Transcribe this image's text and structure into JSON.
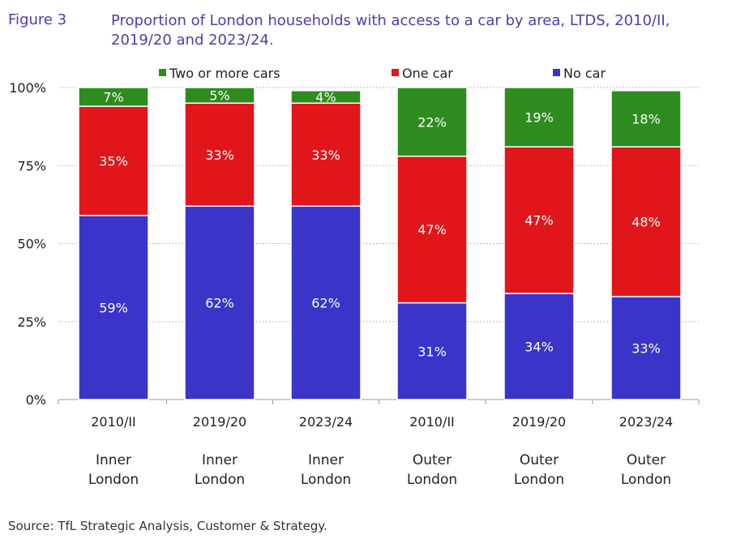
{
  "figure_label": "Figure 3",
  "source": "Source: TfL Strategic Analysis, Customer & Strategy.",
  "colors": {
    "two_or_more": "#2e8b1e",
    "one_car": "#e0161b",
    "no_car": "#3a35c8",
    "title": "#4b3fb0"
  },
  "chart_data": {
    "type": "bar",
    "stacked": true,
    "title": "Proportion of London households with access to a car by area, LTDS, 2010/II, 2019/20 and 2023/24.",
    "xlabel": "",
    "ylabel": "",
    "ylim": [
      0,
      100
    ],
    "y_ticks": [
      "0%",
      "25%",
      "50%",
      "75%",
      "100%"
    ],
    "y_tick_values": [
      0,
      25,
      50,
      75,
      100
    ],
    "categories": [
      "2010/II",
      "2019/20",
      "2023/24",
      "2010/II",
      "2019/20",
      "2023/24"
    ],
    "areas": [
      "Inner\nLondon",
      "Inner\nLondon",
      "Inner\nLondon",
      "Outer\nLondon",
      "Outer\nLondon",
      "Outer\nLondon"
    ],
    "legend": [
      "Two or more cars",
      "One car",
      "No car"
    ],
    "legend_position": "top",
    "series": [
      {
        "name": "No car",
        "values": [
          59,
          62,
          62,
          31,
          34,
          33
        ],
        "labels": [
          "59%",
          "62%",
          "62%",
          "31%",
          "34%",
          "33%"
        ]
      },
      {
        "name": "One car",
        "values": [
          35,
          33,
          33,
          47,
          47,
          48
        ],
        "labels": [
          "35%",
          "33%",
          "33%",
          "47%",
          "47%",
          "48%"
        ]
      },
      {
        "name": "Two or more cars",
        "values": [
          7,
          5,
          4,
          22,
          19,
          18
        ],
        "labels": [
          "7%",
          "5%",
          "4%",
          "22%",
          "19%",
          "18%"
        ]
      }
    ]
  }
}
